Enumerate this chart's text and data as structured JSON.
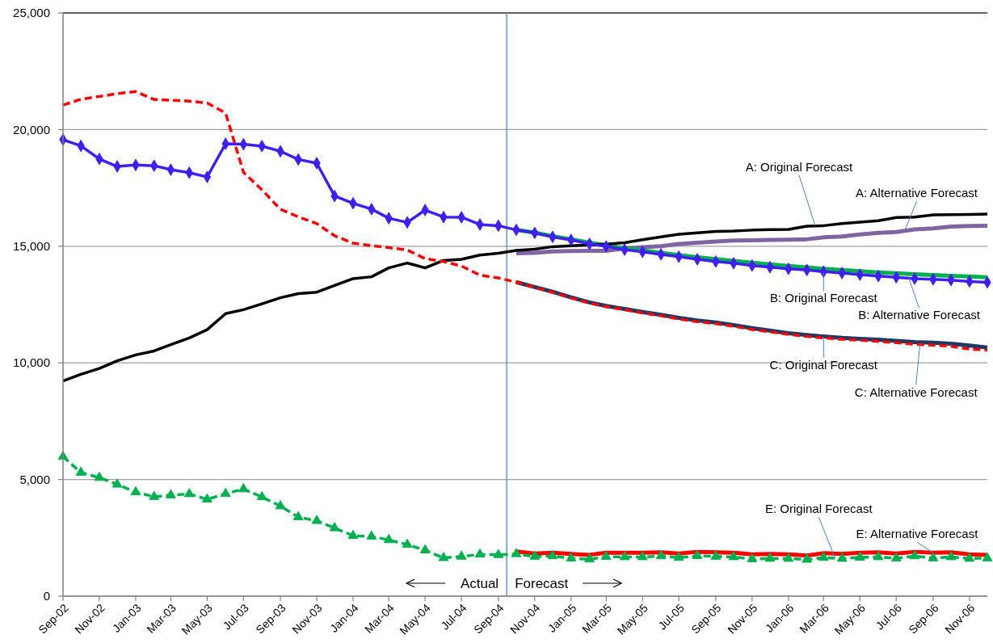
{
  "chart_data": {
    "type": "line",
    "xlim": [
      "2002-09",
      "2006-12"
    ],
    "xticks": [
      {
        "value": "2002-09",
        "label": "Sep-02"
      },
      {
        "value": "2002-11",
        "label": "Nov-02"
      },
      {
        "value": "2003-01",
        "label": "Jan-03"
      },
      {
        "value": "2003-03",
        "label": "Mar-03"
      },
      {
        "value": "2003-05",
        "label": "May-03"
      },
      {
        "value": "2003-07",
        "label": "Jul-03"
      },
      {
        "value": "2003-09",
        "label": "Sep-03"
      },
      {
        "value": "2003-11",
        "label": "Nov-03"
      },
      {
        "value": "2004-01",
        "label": "Jan-04"
      },
      {
        "value": "2004-03",
        "label": "Mar-04"
      },
      {
        "value": "2004-05",
        "label": "May-04"
      },
      {
        "value": "2004-07",
        "label": "Jul-04"
      },
      {
        "value": "2004-09",
        "label": "Sep-04"
      },
      {
        "value": "2004-11",
        "label": "Nov-04"
      },
      {
        "value": "2005-01",
        "label": "Jan-05"
      },
      {
        "value": "2005-03",
        "label": "Mar-05"
      },
      {
        "value": "2005-05",
        "label": "May-05"
      },
      {
        "value": "2005-07",
        "label": "Jul-05"
      },
      {
        "value": "2005-09",
        "label": "Sep-05"
      },
      {
        "value": "2005-11",
        "label": "Nov-05"
      },
      {
        "value": "2006-01",
        "label": "Jan-06"
      },
      {
        "value": "2006-03",
        "label": "Mar-06"
      },
      {
        "value": "2006-05",
        "label": "May-06"
      },
      {
        "value": "2006-07",
        "label": "Jul-06"
      },
      {
        "value": "2006-09",
        "label": "Sep-06"
      },
      {
        "value": "2006-11",
        "label": "Nov-06"
      }
    ],
    "ylim": [
      0,
      25000
    ],
    "yticks": [
      0,
      {
        "value": 5000,
        "label": "5,000"
      },
      {
        "value": 10000,
        "label": "10,000"
      },
      {
        "value": 15000,
        "label": "15,000"
      },
      {
        "value": 20000,
        "label": "20,000"
      },
      {
        "value": 25000,
        "label": "25,000"
      }
    ],
    "grid": "y",
    "ref_lines": [
      {
        "axis": "x",
        "value": "2004-09-15",
        "color": "#4f81bd"
      }
    ],
    "annotations": [
      "Actual",
      "Forecast",
      {
        "text": "A: Original Forecast",
        "x": "2006-02-15",
        "y": 15870
      },
      {
        "text": "A: Alternative Forecast",
        "x": "2006-07-15",
        "y": 15650
      },
      {
        "text": "B: Original Forecast",
        "x": "2006-03",
        "y": 13910
      },
      {
        "text": "B: Alternative Forecast",
        "x": "2006-07-20",
        "y": 13800
      },
      {
        "text": "C: Original Forecast",
        "x": "2006-03",
        "y": 11130
      },
      {
        "text": "C: Alternative Forecast",
        "x": "2006-08-10",
        "y": 10850
      },
      {
        "text": "E: Original Forecast",
        "x": "2006-03-20",
        "y": 1650
      },
      {
        "text": "E: Alternative Forecast",
        "x": "2006-09",
        "y": 1860
      }
    ],
    "series": [
      {
        "color": "#8064a2",
        "marker": "none",
        "line_style": "solid",
        "x": [
          "2004-10",
          "2004-11",
          "2004-12",
          "2005-01",
          "2005-02",
          "2005-03",
          "2005-04",
          "2005-05",
          "2005-06",
          "2005-07",
          "2005-08",
          "2005-09",
          "2005-10",
          "2005-11",
          "2005-12",
          "2006-01",
          "2006-02",
          "2006-03",
          "2006-04",
          "2006-05",
          "2006-06",
          "2006-07",
          "2006-08",
          "2006-09",
          "2006-10",
          "2006-11",
          "2006-12"
        ],
        "values": [
          14700,
          14720,
          14780,
          14790,
          14800,
          14800,
          14900,
          14960,
          15000,
          15100,
          15150,
          15200,
          15240,
          15250,
          15270,
          15280,
          15300,
          15380,
          15420,
          15500,
          15570,
          15610,
          15720,
          15760,
          15840,
          15870,
          15880
        ]
      },
      {
        "color": "#00b050",
        "marker": "none",
        "line_style": "solid",
        "x": [
          "2004-10",
          "2004-11",
          "2004-12",
          "2005-01",
          "2005-02",
          "2005-03",
          "2005-04",
          "2005-05",
          "2005-06",
          "2005-07",
          "2005-08",
          "2005-09",
          "2005-10",
          "2005-11",
          "2005-12",
          "2006-01",
          "2006-02",
          "2006-03",
          "2006-04",
          "2006-05",
          "2006-06",
          "2006-07",
          "2006-08",
          "2006-09",
          "2006-10",
          "2006-11",
          "2006-12"
        ],
        "values": [
          15700,
          15580,
          15430,
          15300,
          15150,
          15040,
          14920,
          14820,
          14720,
          14620,
          14530,
          14450,
          14370,
          14290,
          14220,
          14150,
          14090,
          14030,
          13980,
          13930,
          13880,
          13840,
          13800,
          13760,
          13730,
          13700,
          13670
        ]
      },
      {
        "color": "#1f3864",
        "marker": "none",
        "line_style": "solid",
        "x": [
          "2004-10",
          "2004-11",
          "2004-12",
          "2005-01",
          "2005-02",
          "2005-03",
          "2005-04",
          "2005-05",
          "2005-06",
          "2005-07",
          "2005-08",
          "2005-09",
          "2005-10",
          "2005-11",
          "2005-12",
          "2006-01",
          "2006-02",
          "2006-03",
          "2006-04",
          "2006-05",
          "2006-06",
          "2006-07",
          "2006-08",
          "2006-09",
          "2006-10",
          "2006-11",
          "2006-12"
        ],
        "values": [
          13460,
          13250,
          13050,
          12810,
          12590,
          12440,
          12310,
          12180,
          12060,
          11930,
          11820,
          11730,
          11620,
          11490,
          11380,
          11270,
          11190,
          11130,
          11070,
          11030,
          10990,
          10940,
          10890,
          10860,
          10820,
          10740,
          10660
        ]
      },
      {
        "color": "#ff0000",
        "marker": "none",
        "line_style": "solid",
        "x": [
          "2004-10",
          "2004-11",
          "2004-12",
          "2005-01",
          "2005-02",
          "2005-03",
          "2005-04",
          "2005-05",
          "2005-06",
          "2005-07",
          "2005-08",
          "2005-09",
          "2005-10",
          "2005-11",
          "2005-12",
          "2006-01",
          "2006-02",
          "2006-03",
          "2006-04",
          "2006-05",
          "2006-06",
          "2006-07",
          "2006-08",
          "2006-09",
          "2006-10",
          "2006-11",
          "2006-12"
        ],
        "values": [
          1910,
          1830,
          1860,
          1810,
          1770,
          1860,
          1860,
          1860,
          1880,
          1830,
          1900,
          1880,
          1860,
          1790,
          1810,
          1790,
          1740,
          1840,
          1810,
          1860,
          1880,
          1830,
          1900,
          1860,
          1880,
          1790,
          1770
        ]
      },
      {
        "color": "#000000",
        "marker": "none",
        "line_style": "solid",
        "x": [
          "2002-09",
          "2002-10",
          "2002-11",
          "2002-12",
          "2003-01",
          "2003-02",
          "2003-03",
          "2003-04",
          "2003-05",
          "2003-06",
          "2003-07",
          "2003-08",
          "2003-09",
          "2003-10",
          "2003-11",
          "2003-12",
          "2004-01",
          "2004-02",
          "2004-03",
          "2004-04",
          "2004-05",
          "2004-06",
          "2004-07",
          "2004-08",
          "2004-09",
          "2004-10",
          "2004-11",
          "2004-12",
          "2005-01",
          "2005-02",
          "2005-03",
          "2005-04",
          "2005-05",
          "2005-06",
          "2005-07",
          "2005-08",
          "2005-09",
          "2005-10",
          "2005-11",
          "2005-12",
          "2006-01",
          "2006-02",
          "2006-03",
          "2006-04",
          "2006-05",
          "2006-06",
          "2006-07",
          "2006-08",
          "2006-09",
          "2006-10",
          "2006-11",
          "2006-12"
        ],
        "values": [
          9220,
          9510,
          9760,
          10090,
          10340,
          10510,
          10780,
          11070,
          11420,
          12110,
          12280,
          12530,
          12790,
          12970,
          13030,
          13320,
          13610,
          13690,
          14070,
          14280,
          14070,
          14390,
          14440,
          14620,
          14700,
          14820,
          14870,
          14980,
          15020,
          15050,
          15090,
          15150,
          15280,
          15400,
          15510,
          15570,
          15630,
          15650,
          15690,
          15710,
          15720,
          15860,
          15880,
          15970,
          16030,
          16090,
          16230,
          16250,
          16340,
          16350,
          16360,
          16380
        ]
      },
      {
        "color": "#4020f0",
        "marker": "diamond",
        "line_style": "solid",
        "x": [
          "2002-09",
          "2002-10",
          "2002-11",
          "2002-12",
          "2003-01",
          "2003-02",
          "2003-03",
          "2003-04",
          "2003-05",
          "2003-06",
          "2003-07",
          "2003-08",
          "2003-09",
          "2003-10",
          "2003-11",
          "2003-12",
          "2004-01",
          "2004-02",
          "2004-03",
          "2004-04",
          "2004-05",
          "2004-06",
          "2004-07",
          "2004-08",
          "2004-09",
          "2004-10",
          "2004-11",
          "2004-12",
          "2005-01",
          "2005-02",
          "2005-03",
          "2005-04",
          "2005-05",
          "2005-06",
          "2005-07",
          "2005-08",
          "2005-09",
          "2005-10",
          "2005-11",
          "2005-12",
          "2006-01",
          "2006-02",
          "2006-03",
          "2006-04",
          "2006-05",
          "2006-06",
          "2006-07",
          "2006-08",
          "2006-09",
          "2006-10",
          "2006-11",
          "2006-12"
        ],
        "values": [
          19570,
          19300,
          18740,
          18420,
          18480,
          18450,
          18280,
          18150,
          17970,
          19390,
          19370,
          19290,
          19070,
          18720,
          18560,
          17150,
          16840,
          16590,
          16200,
          16020,
          16550,
          16250,
          16240,
          15930,
          15880,
          15700,
          15570,
          15400,
          15270,
          15100,
          14990,
          14850,
          14760,
          14650,
          14550,
          14440,
          14340,
          14270,
          14170,
          14100,
          14030,
          13980,
          13910,
          13850,
          13780,
          13720,
          13670,
          13610,
          13580,
          13550,
          13490,
          13450
        ]
      },
      {
        "color": "#ff0000",
        "marker": "none",
        "line_style": "dashed",
        "x": [
          "2002-09",
          "2002-10",
          "2002-11",
          "2002-12",
          "2003-01",
          "2003-02",
          "2003-03",
          "2003-04",
          "2003-05",
          "2003-06",
          "2003-07",
          "2003-08",
          "2003-09",
          "2003-10",
          "2003-11",
          "2003-12",
          "2004-01",
          "2004-02",
          "2004-03",
          "2004-04",
          "2004-05",
          "2004-06",
          "2004-07",
          "2004-08",
          "2004-09",
          "2004-10",
          "2004-11",
          "2004-12",
          "2005-01",
          "2005-02",
          "2005-03",
          "2005-04",
          "2005-05",
          "2005-06",
          "2005-07",
          "2005-08",
          "2005-09",
          "2005-10",
          "2005-11",
          "2005-12",
          "2006-01",
          "2006-02",
          "2006-03",
          "2006-04",
          "2006-05",
          "2006-06",
          "2006-07",
          "2006-08",
          "2006-09",
          "2006-10",
          "2006-11",
          "2006-12"
        ],
        "values": [
          21050,
          21300,
          21420,
          21540,
          21630,
          21290,
          21260,
          21220,
          21140,
          20710,
          18170,
          17420,
          16580,
          16260,
          15970,
          15450,
          15130,
          15020,
          14940,
          14840,
          14470,
          14340,
          14150,
          13760,
          13640,
          13460,
          13230,
          13020,
          12780,
          12560,
          12410,
          12280,
          12140,
          12020,
          11880,
          11760,
          11680,
          11570,
          11430,
          11330,
          11220,
          11130,
          11070,
          11010,
          10970,
          10920,
          10860,
          10800,
          10760,
          10710,
          10590,
          10550
        ]
      },
      {
        "color": "#00b050",
        "marker": "triangle",
        "line_style": "dashed",
        "x": [
          "2002-09",
          "2002-10",
          "2002-11",
          "2002-12",
          "2003-01",
          "2003-02",
          "2003-03",
          "2003-04",
          "2003-05",
          "2003-06",
          "2003-07",
          "2003-08",
          "2003-09",
          "2003-10",
          "2003-11",
          "2003-12",
          "2004-01",
          "2004-02",
          "2004-03",
          "2004-04",
          "2004-05",
          "2004-06",
          "2004-07",
          "2004-08",
          "2004-09",
          "2004-10",
          "2004-11",
          "2004-12",
          "2005-01",
          "2005-02",
          "2005-03",
          "2005-04",
          "2005-05",
          "2005-06",
          "2005-07",
          "2005-08",
          "2005-09",
          "2005-10",
          "2005-11",
          "2005-12",
          "2006-01",
          "2006-02",
          "2006-03",
          "2006-04",
          "2006-05",
          "2006-06",
          "2006-07",
          "2006-08",
          "2006-09",
          "2006-10",
          "2006-11",
          "2006-12"
        ],
        "values": [
          5980,
          5300,
          5080,
          4790,
          4460,
          4260,
          4330,
          4380,
          4150,
          4390,
          4590,
          4250,
          3860,
          3390,
          3230,
          2920,
          2590,
          2560,
          2410,
          2210,
          1970,
          1640,
          1700,
          1790,
          1770,
          1810,
          1700,
          1720,
          1620,
          1580,
          1690,
          1680,
          1680,
          1720,
          1650,
          1730,
          1700,
          1680,
          1590,
          1610,
          1610,
          1570,
          1650,
          1610,
          1660,
          1680,
          1620,
          1720,
          1630,
          1680,
          1610,
          1630
        ]
      }
    ]
  }
}
